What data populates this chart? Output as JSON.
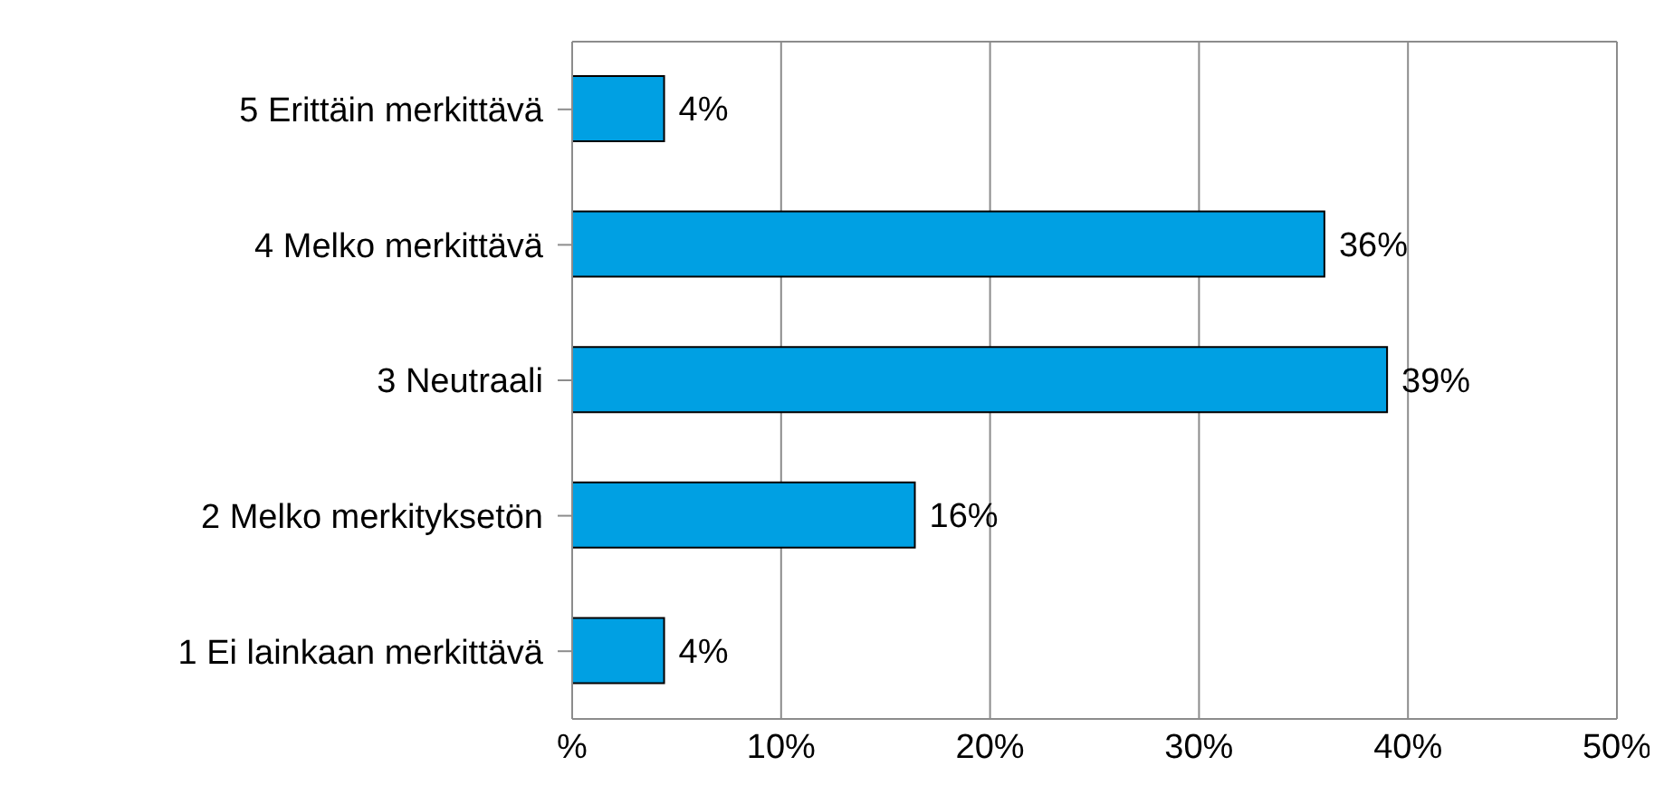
{
  "chart_data": {
    "type": "bar",
    "orientation": "horizontal",
    "categories": [
      "5 Erittäin merkittävä",
      "4 Melko merkittävä",
      "3 Neutraali",
      "2 Melko merkityksetön",
      "1 Ei lainkaan merkittävä"
    ],
    "values": [
      4.4,
      36,
      39,
      16.4,
      4.4
    ],
    "value_labels": [
      "4%",
      "36%",
      "39%",
      "16%",
      "4%"
    ],
    "color": "#00a0e3",
    "xlim": [
      0,
      50
    ],
    "xticks": [
      {
        "value": 0,
        "label": "%"
      },
      {
        "value": 10,
        "label": "10%"
      },
      {
        "value": 20,
        "label": "20%"
      },
      {
        "value": 30,
        "label": "30%"
      },
      {
        "value": 40,
        "label": "40%"
      },
      {
        "value": 50,
        "label": "50%"
      }
    ],
    "grid": "x"
  }
}
